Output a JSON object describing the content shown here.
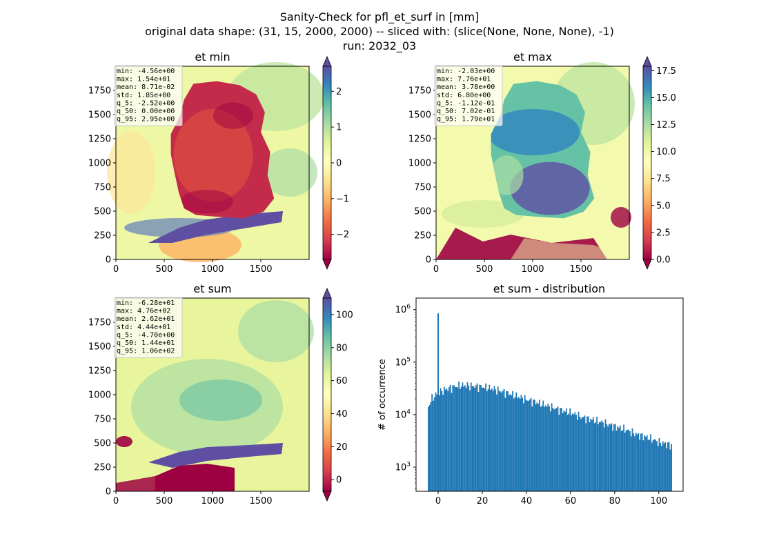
{
  "figure": {
    "suptitle": [
      "Sanity-Check for pfl_et_surf in [mm]",
      "original data shape: (31, 15, 2000, 2000) -- sliced with: (slice(None, None, None), -1)",
      "run: 2032_03"
    ],
    "colormap": "Spectral",
    "colormap_stops": [
      "#9e0142",
      "#d53e4f",
      "#f46d43",
      "#fdae61",
      "#fee08b",
      "#ffffbf",
      "#e6f598",
      "#abdda4",
      "#66c2a5",
      "#3288bd",
      "#5e4fa2"
    ],
    "hist_color": "#1f77b4"
  },
  "chart_data": [
    {
      "type": "heatmap",
      "title": "et min",
      "x_ticks": [
        0,
        500,
        1000,
        1500
      ],
      "y_ticks": [
        0,
        250,
        500,
        750,
        1000,
        1250,
        1500,
        1750
      ],
      "xlim": [
        0,
        2000
      ],
      "ylim": [
        0,
        2000
      ],
      "colorbar": {
        "range": [
          -2.7,
          2.7
        ],
        "ticks": [
          2,
          1,
          0,
          -1,
          -2
        ],
        "tick_labels": [
          "2",
          "1",
          "0",
          "−1",
          "−2"
        ],
        "extend": "both"
      },
      "stats": [
        "min: -4.56e+00",
        "max: 1.54e+01",
        "mean: 8.71e-02",
        "std: 1.85e+00",
        "q_5: -2.52e+00",
        "q_50: 0.00e+00",
        "q_95: 2.95e+00"
      ]
    },
    {
      "type": "heatmap",
      "title": "et max",
      "x_ticks": [
        0,
        500,
        1000,
        1500
      ],
      "y_ticks": [
        0,
        250,
        500,
        750,
        1000,
        1250,
        1500,
        1750
      ],
      "xlim": [
        0,
        2000
      ],
      "ylim": [
        0,
        2000
      ],
      "colorbar": {
        "range": [
          0,
          17.9
        ],
        "ticks": [
          17.5,
          15.0,
          12.5,
          10.0,
          7.5,
          5.0,
          2.5,
          0.0
        ],
        "tick_labels": [
          "17.5",
          "15.0",
          "12.5",
          "10.0",
          "7.5",
          "5.0",
          "2.5",
          "0.0"
        ],
        "extend": "both"
      },
      "stats": [
        "min: -2.03e+00",
        "max: 7.76e+01",
        "mean: 3.78e+00",
        "std: 6.80e+00",
        "q_5: -1.12e-01",
        "q_50: 7.02e-01",
        "q_95: 1.79e+01"
      ]
    },
    {
      "type": "heatmap",
      "title": "et sum",
      "x_ticks": [
        0,
        500,
        1000,
        1500
      ],
      "y_ticks": [
        0,
        250,
        500,
        750,
        1000,
        1250,
        1500,
        1750
      ],
      "xlim": [
        0,
        2000
      ],
      "ylim": [
        0,
        2000
      ],
      "colorbar": {
        "range": [
          -7,
          110
        ],
        "ticks": [
          100,
          80,
          60,
          40,
          20,
          0
        ],
        "tick_labels": [
          "100",
          "80",
          "60",
          "40",
          "20",
          "0"
        ],
        "extend": "both"
      },
      "stats": [
        "min: -6.28e+01",
        "max: 4.76e+02",
        "mean: 2.62e+01",
        "std: 4.44e+01",
        "q_5: -4.70e+00",
        "q_50: 1.44e+01",
        "q_95: 1.06e+02"
      ]
    },
    {
      "type": "histogram",
      "title": "et sum - distribution",
      "xlabel": "",
      "ylabel": "# of occurrence",
      "xlim": [
        -10,
        111
      ],
      "ylim_log10": [
        2.54,
        6.22
      ],
      "y_scale": "log",
      "x_ticks": [
        0,
        20,
        40,
        60,
        80,
        100
      ],
      "y_ticks": [
        {
          "exp": 3,
          "label": "10^3"
        },
        {
          "exp": 4,
          "label": "10^4"
        },
        {
          "exp": 5,
          "label": "10^5"
        },
        {
          "exp": 6,
          "label": "10^6"
        }
      ],
      "bins": {
        "start": -4.7,
        "end": 106,
        "count": 200
      },
      "spike": {
        "x": 0,
        "count": 850000
      },
      "profile": [
        [
          -4.7,
          13000
        ],
        [
          -3,
          20000
        ],
        [
          0,
          26000
        ],
        [
          3,
          30000
        ],
        [
          7,
          34000
        ],
        [
          10,
          36000
        ],
        [
          13,
          36000
        ],
        [
          20,
          34000
        ],
        [
          25,
          31000
        ],
        [
          30,
          27000
        ],
        [
          35,
          23000
        ],
        [
          40,
          19500
        ],
        [
          45,
          17000
        ],
        [
          50,
          14500
        ],
        [
          55,
          12500
        ],
        [
          60,
          11000
        ],
        [
          65,
          9000
        ],
        [
          70,
          8000
        ],
        [
          75,
          7000
        ],
        [
          80,
          6000
        ],
        [
          85,
          5200
        ],
        [
          90,
          4200
        ],
        [
          95,
          3700
        ],
        [
          100,
          3000
        ],
        [
          106,
          2600
        ]
      ]
    }
  ]
}
